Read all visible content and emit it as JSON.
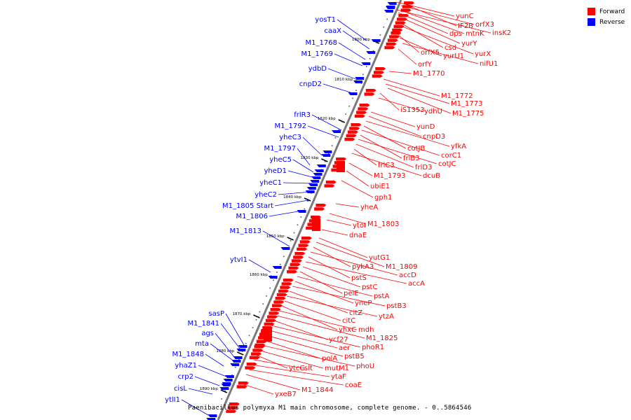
{
  "title": "Paenibacillus polymyxa M1 main chromosome, complete genome. - 0..5864546",
  "legend": {
    "forward": {
      "label": "Forward",
      "color": "#ff0000"
    },
    "reverse": {
      "label": "Reverse",
      "color": "#0000ff"
    }
  },
  "axis_ticks": [
    "1800 kbp",
    "1810 kbp",
    "1820 kbp",
    "1830 kbp",
    "1840 kbp",
    "1850 kbp",
    "1860 kbp",
    "1870 kbp",
    "1880 kbp",
    "1890 kbp"
  ],
  "forward_genes": [
    "yunC",
    "orfX3",
    "IF2B",
    "insK2",
    "dps",
    "mtnK",
    "yurY",
    "csd",
    "yurX",
    "orfX5",
    "yurU1",
    "nifU1",
    "orfY",
    "M1_1770",
    "M1_1772",
    "M1_1773",
    "M1_1775",
    "iS1353",
    "ydhU",
    "yunD",
    "cnpD3",
    "yfkA",
    "cotJB",
    "corC1",
    "frlB3",
    "cotJC",
    "frlD3",
    "frlC3",
    "dcuB",
    "M1_1793",
    "ubiE1",
    "gph1",
    "yheA",
    "ytoI",
    "M1_1803",
    "dnaE",
    "yutG1",
    "M1_1809",
    "pykA3",
    "accD",
    "pstS",
    "accA",
    "pstC",
    "pelE",
    "pstA",
    "yneP",
    "pstB3",
    "citZ",
    "ytzA",
    "citC",
    "yhxC",
    "mdh",
    "M1_1825",
    "ycf27",
    "phoR1",
    "aer",
    "pstB5",
    "polA",
    "phoU",
    "mutM1",
    "ytcG",
    "slt",
    "ytaF",
    "coaE",
    "M1_1844",
    "yxeB7"
  ],
  "reverse_genes": [
    "yosT1",
    "caaX",
    "M1_1768",
    "M1_1769",
    "ydbD",
    "cnpD2",
    "frlR3",
    "M1_1792",
    "yheC3",
    "M1_1797",
    "yheC5",
    "yheD1",
    "yheC1",
    "yheC2",
    "M1_1805 Start",
    "M1_1806",
    "M1_1813",
    "ytvI1",
    "sasP",
    "M1_1841",
    "ags",
    "mta",
    "M1_1848",
    "yhaZ1",
    "crp2",
    "cisL",
    "ytlI1"
  ]
}
